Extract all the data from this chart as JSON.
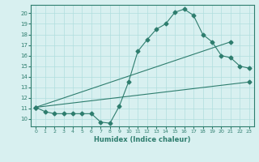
{
  "line1_x": [
    0,
    1,
    2,
    3,
    4,
    5,
    6,
    7,
    8,
    9,
    10,
    11,
    12,
    13,
    14,
    15,
    16,
    17,
    18,
    19,
    20,
    21,
    22,
    23
  ],
  "line1_y": [
    11.1,
    10.7,
    10.5,
    10.5,
    10.5,
    10.5,
    10.5,
    9.7,
    9.6,
    11.2,
    13.5,
    16.4,
    17.5,
    18.5,
    19.0,
    20.1,
    20.4,
    19.8,
    18.0,
    17.3,
    16.0,
    15.8,
    15.0,
    14.8
  ],
  "line2_x": [
    0,
    21
  ],
  "line2_y": [
    11.1,
    17.3
  ],
  "line3_x": [
    0,
    23
  ],
  "line3_y": [
    11.1,
    13.5
  ],
  "color": "#2e7d6e",
  "bg_color": "#d8f0f0",
  "grid_color": "#b0dede",
  "xlim": [
    -0.5,
    23.5
  ],
  "ylim": [
    9.3,
    20.8
  ],
  "yticks": [
    10,
    11,
    12,
    13,
    14,
    15,
    16,
    17,
    18,
    19,
    20
  ],
  "xticks": [
    0,
    1,
    2,
    3,
    4,
    5,
    6,
    7,
    8,
    9,
    10,
    11,
    12,
    13,
    14,
    15,
    16,
    17,
    18,
    19,
    20,
    21,
    22,
    23
  ],
  "xlabel": "Humidex (Indice chaleur)",
  "markersize": 2.5
}
